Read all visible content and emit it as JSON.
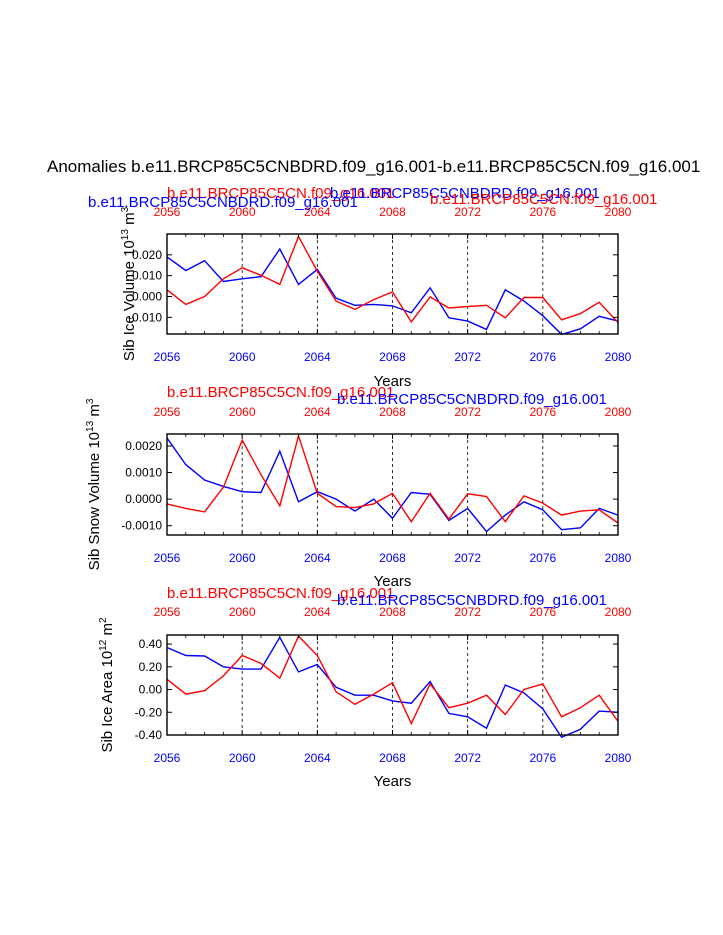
{
  "title": "Anomalies b.e11.BRCP85C5CNBDRD.f09_g16.001-b.e11.BRCP85C5CN.f09_g16.001",
  "colors": {
    "series_a": "#0000ff",
    "series_b": "#ff0000",
    "axis": "#000000"
  },
  "chart_data": [
    {
      "type": "line",
      "ylabel_main": "Sib Ice Volume 10",
      "ylabel_exp": "13",
      "ylabel_unit": " m",
      "ylabel_unit_exp": "3",
      "xlabel": "Years",
      "ylim": [
        -0.018,
        0.03
      ],
      "yticks": [
        -0.01,
        0.0,
        0.01,
        0.02
      ],
      "ytick_labels": [
        "-0.010",
        "0.000",
        "0.010",
        "0.020"
      ],
      "xlim": [
        2056,
        2080
      ],
      "xticks": [
        2056,
        2060,
        2064,
        2068,
        2072,
        2076,
        2080
      ],
      "xtick_labels": [
        "2056",
        "2060",
        "2064",
        "2068",
        "2072",
        "2076",
        "2080"
      ],
      "gridlines_x": [
        2060,
        2064,
        2068,
        2072,
        2076
      ],
      "left_label": "b.e11.BRCP85C5CNBDRD.f09_g16.001",
      "center_label": "b.e11.BRCP85C5CN.f09_g16.001",
      "right_label": "b.e11.BRCP85C5CNBDRD.f09_g16.001",
      "right_label_2": "b.e11.BRCP85C5CN.f09_g16.001",
      "series": [
        {
          "name": "b.e11.BRCP85C5CNBDRD.f09_g16.001",
          "color": "#0000ff",
          "x": [
            2056,
            2057,
            2058,
            2059,
            2060,
            2061,
            2062,
            2063,
            2064,
            2065,
            2066,
            2067,
            2068,
            2069,
            2070,
            2071,
            2072,
            2073,
            2074,
            2075,
            2076,
            2077,
            2078,
            2079,
            2080
          ],
          "values": [
            0.019,
            0.0125,
            0.0172,
            0.0072,
            0.0085,
            0.0095,
            0.0228,
            0.0058,
            0.013,
            -0.0008,
            -0.0042,
            -0.0038,
            -0.0045,
            -0.0078,
            0.0042,
            -0.0102,
            -0.0118,
            -0.0158,
            0.0032,
            -0.0022,
            -0.0092,
            -0.0182,
            -0.0155,
            -0.0095,
            -0.0118
          ]
        },
        {
          "name": "b.e11.BRCP85C5CN.f09_g16.001",
          "color": "#ff0000",
          "x": [
            2056,
            2057,
            2058,
            2059,
            2060,
            2061,
            2062,
            2063,
            2064,
            2065,
            2066,
            2067,
            2068,
            2069,
            2070,
            2071,
            2072,
            2073,
            2074,
            2075,
            2076,
            2077,
            2078,
            2079,
            2080
          ],
          "values": [
            0.0032,
            -0.0038,
            0.0,
            0.0085,
            0.0138,
            0.0102,
            0.0058,
            0.0288,
            0.0122,
            -0.0022,
            -0.0062,
            -0.0015,
            0.0022,
            -0.0122,
            -0.0002,
            -0.0055,
            -0.0048,
            -0.0042,
            -0.0102,
            -0.0005,
            -0.0005,
            -0.0112,
            -0.0082,
            -0.0028,
            -0.0125
          ]
        }
      ]
    },
    {
      "type": "line",
      "ylabel_main": "Sib Snow Volume 10",
      "ylabel_exp": "13",
      "ylabel_unit": " m",
      "ylabel_unit_exp": "3",
      "xlabel": "Years",
      "ylim": [
        -0.00135,
        0.00245
      ],
      "yticks": [
        -0.001,
        0.0,
        0.001,
        0.002
      ],
      "ytick_labels": [
        "-0.0010",
        "0.0000",
        "0.0010",
        "0.0020"
      ],
      "xlim": [
        2056,
        2080
      ],
      "xticks": [
        2056,
        2060,
        2064,
        2068,
        2072,
        2076,
        2080
      ],
      "xtick_labels": [
        "2056",
        "2060",
        "2064",
        "2068",
        "2072",
        "2076",
        "2080"
      ],
      "gridlines_x": [
        2060,
        2064,
        2068,
        2072,
        2076
      ],
      "left_label": "b.e11.BRCP85C5CN.f09_g16.001",
      "center_label": "b.e11.BRCP85C5CNBDRD.f09_g16.001",
      "series": [
        {
          "name": "b.e11.BRCP85C5CNBDRD.f09_g16.001",
          "color": "#0000ff",
          "x": [
            2056,
            2057,
            2058,
            2059,
            2060,
            2061,
            2062,
            2063,
            2064,
            2065,
            2066,
            2067,
            2068,
            2069,
            2070,
            2071,
            2072,
            2073,
            2074,
            2075,
            2076,
            2077,
            2078,
            2079,
            2080
          ],
          "values": [
            0.0023,
            0.0013,
            0.00072,
            0.00048,
            0.00028,
            0.00025,
            0.0018,
            -0.0001,
            0.00028,
            0.0,
            -0.00045,
            0.0,
            -0.00072,
            0.00025,
            0.00018,
            -0.0008,
            -0.00035,
            -0.00122,
            -0.0006,
            -0.0001,
            -0.0004,
            -0.00115,
            -0.00108,
            -0.00035,
            -0.0006
          ]
        },
        {
          "name": "b.e11.BRCP85C5CN.f09_g16.001",
          "color": "#ff0000",
          "x": [
            2056,
            2057,
            2058,
            2059,
            2060,
            2061,
            2062,
            2063,
            2064,
            2065,
            2066,
            2067,
            2068,
            2069,
            2070,
            2071,
            2072,
            2073,
            2074,
            2075,
            2076,
            2077,
            2078,
            2079,
            2080
          ],
          "values": [
            -0.00018,
            -0.00035,
            -0.00048,
            0.00045,
            0.00222,
            0.00092,
            -0.00025,
            0.00238,
            0.00022,
            -0.00028,
            -0.00032,
            -0.00018,
            0.00022,
            -0.00085,
            0.00022,
            -0.00075,
            0.0002,
            0.0001,
            -0.00085,
            0.00012,
            -0.00015,
            -0.0006,
            -0.00045,
            -0.0004,
            -0.0009
          ]
        }
      ]
    },
    {
      "type": "line",
      "ylabel_main": "Sib Ice Area 10",
      "ylabel_exp": "12",
      "ylabel_unit": " m",
      "ylabel_unit_exp": "2",
      "xlabel": "Years",
      "ylim": [
        -0.4,
        0.48
      ],
      "yticks": [
        -0.4,
        -0.2,
        0.0,
        0.2,
        0.4
      ],
      "ytick_labels": [
        "-0.40",
        "-0.20",
        "0.00",
        "0.20",
        "0.40"
      ],
      "xlim": [
        2056,
        2080
      ],
      "xticks": [
        2056,
        2060,
        2064,
        2068,
        2072,
        2076,
        2080
      ],
      "xtick_labels": [
        "2056",
        "2060",
        "2064",
        "2068",
        "2072",
        "2076",
        "2080"
      ],
      "gridlines_x": [
        2060,
        2064,
        2068,
        2072,
        2076
      ],
      "left_label": "b.e11.BRCP85C5CN.f09_g16.001",
      "center_label": "b.e11.BRCP85C5CNBDRD.f09_g16.001",
      "series": [
        {
          "name": "b.e11.BRCP85C5CNBDRD.f09_g16.001",
          "color": "#0000ff",
          "x": [
            2056,
            2057,
            2058,
            2059,
            2060,
            2061,
            2062,
            2063,
            2064,
            2065,
            2066,
            2067,
            2068,
            2069,
            2070,
            2071,
            2072,
            2073,
            2074,
            2075,
            2076,
            2077,
            2078,
            2079,
            2080
          ],
          "values": [
            0.37,
            0.3,
            0.295,
            0.2,
            0.18,
            0.18,
            0.46,
            0.155,
            0.22,
            0.02,
            -0.05,
            -0.05,
            -0.1,
            -0.12,
            0.07,
            -0.21,
            -0.24,
            -0.34,
            0.04,
            -0.03,
            -0.17,
            -0.42,
            -0.35,
            -0.19,
            -0.2
          ]
        },
        {
          "name": "b.e11.BRCP85C5CN.f09_g16.001",
          "color": "#ff0000",
          "x": [
            2056,
            2057,
            2058,
            2059,
            2060,
            2061,
            2062,
            2063,
            2064,
            2065,
            2066,
            2067,
            2068,
            2069,
            2070,
            2071,
            2072,
            2073,
            2074,
            2075,
            2076,
            2077,
            2078,
            2079,
            2080
          ],
          "values": [
            0.09,
            -0.04,
            -0.01,
            0.12,
            0.3,
            0.23,
            0.1,
            0.47,
            0.3,
            -0.02,
            -0.13,
            -0.04,
            0.06,
            -0.3,
            0.05,
            -0.16,
            -0.12,
            -0.05,
            -0.22,
            0.0,
            0.05,
            -0.24,
            -0.16,
            -0.05,
            -0.28
          ]
        }
      ]
    }
  ]
}
